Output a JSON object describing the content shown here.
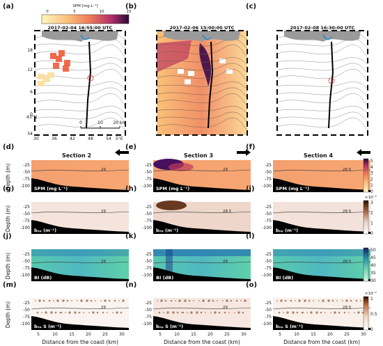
{
  "colorbar_top": {
    "label": "SPM [mg.L⁻¹]",
    "ticks": [
      "0",
      "5",
      "10",
      "15"
    ]
  },
  "maps": [
    {
      "panel": "(a)",
      "timestamp": "2017-02-04 16:55:00 UTC"
    },
    {
      "panel": "(b)",
      "timestamp": "2017-02-06 15:00:00 UTC"
    },
    {
      "panel": "(c)",
      "timestamp": "2017-02-08 16:30:00 UTC"
    }
  ],
  "map_axis": {
    "yticks": [
      "18",
      "12",
      "6",
      "0",
      "54"
    ],
    "xticks": [
      "30",
      "36",
      "42",
      "48",
      "54"
    ],
    "lat_label": "43°N",
    "lon_label": "5°E",
    "scale_labels": [
      "0",
      "10",
      "20 km"
    ]
  },
  "sections": [
    {
      "title": "Section 2",
      "arrow": "left"
    },
    {
      "title": "Section 3",
      "arrow": "right"
    },
    {
      "title": "Section 4",
      "arrow": "left"
    }
  ],
  "rows": [
    {
      "panels": [
        "(d)",
        "(e)",
        "(f)"
      ],
      "in_label": "SPM (mg L⁻¹)",
      "cbar_ticks": [
        "5",
        "4",
        "3",
        "2",
        "1",
        "0"
      ],
      "cbar_exp": "",
      "isolines": [
        "29",
        "29",
        "28.5"
      ]
    },
    {
      "panels": [
        "(g)",
        "(h)",
        "(i)"
      ],
      "in_label": "bₑₚ (m⁻¹)",
      "cbar_ticks": [
        "3",
        "2",
        "1",
        "0"
      ],
      "cbar_exp": "×10⁻³",
      "isolines": [
        "29",
        "28.5",
        "28.5"
      ]
    },
    {
      "panels": [
        "(j)",
        "(k)",
        "(l)"
      ],
      "in_label": "BI (dB)",
      "cbar_ticks": [
        "50",
        "45",
        "40",
        "35",
        "30"
      ],
      "cbar_exp": "",
      "isolines": [
        "29",
        "29",
        "28.5"
      ]
    },
    {
      "panels": [
        "(m)",
        "(n)",
        "(o)"
      ],
      "in_label": "bₑₚ S (m⁻¹)",
      "cbar_ticks": [
        "1",
        "0.5",
        "0"
      ],
      "cbar_exp": "×10⁻³",
      "isolines": [
        "29",
        "29",
        "28.5"
      ]
    }
  ],
  "section_axis": {
    "ylabel": "Depth (m)",
    "yticks": [
      "-25",
      "-50",
      "-75",
      "-100"
    ],
    "xticks": [
      "5",
      "10",
      "15",
      "20",
      "25",
      "30"
    ],
    "xlabel": "Distance from the coast (km)"
  },
  "colors": {
    "spm_low": "#fde0a0",
    "spm_mid": "#f0805a",
    "spm_high": "#3a0a4a",
    "bi_low": "#bdf2d6",
    "bi_mid": "#3fb4b4",
    "bi_high": "#0e1a5a",
    "bottom": "#000000"
  }
}
